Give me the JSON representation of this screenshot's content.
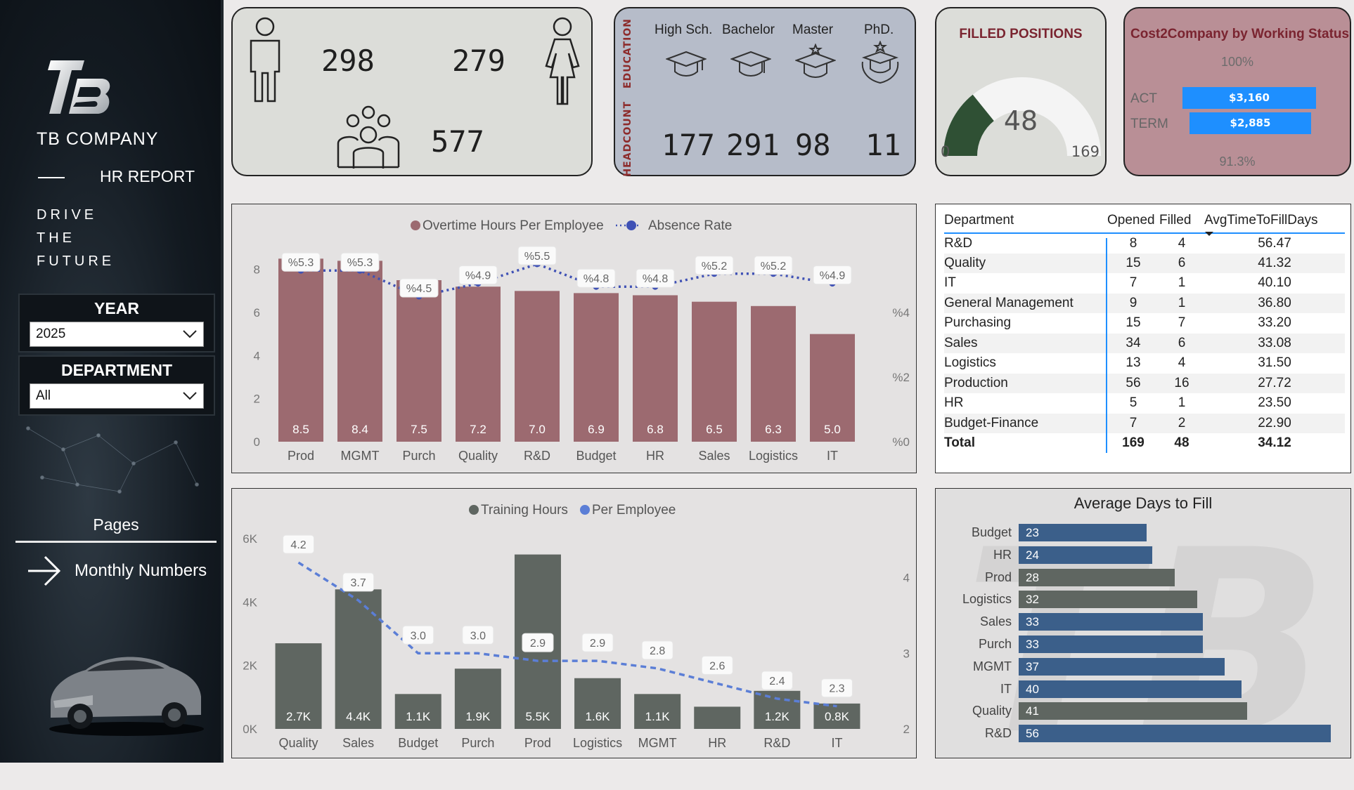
{
  "sidebar": {
    "logo_text": "TB",
    "company": "TB COMPANY",
    "report": "HR REPORT",
    "tagline": [
      "DRIVE",
      "THE",
      "FUTURE"
    ],
    "year_label": "YEAR",
    "year_value": "2025",
    "department_label": "DEPARTMENT",
    "department_value": "All",
    "pages_label": "Pages",
    "page_link": "Monthly Numbers"
  },
  "gender_card": {
    "male": "298",
    "female": "279",
    "total": "577",
    "icons": [
      "male-icon",
      "female-icon",
      "group-icon"
    ]
  },
  "education_card": {
    "side_education": "EDUCATION",
    "side_headcount": "HEADCOUNT",
    "levels": [
      {
        "label": "High Sch.",
        "count": "177"
      },
      {
        "label": "Bachelor",
        "count": "291"
      },
      {
        "label": "Master",
        "count": "98"
      },
      {
        "label": "PhD.",
        "count": "11"
      }
    ]
  },
  "filled_positions": {
    "title": "FILLED POSITIONS",
    "value": "48",
    "min": "0",
    "max": "169",
    "fraction": 0.284,
    "colors": {
      "fill": "#2f5034",
      "track": "#f4f4f4"
    }
  },
  "cost_card": {
    "title": "Cost2Company by Working Status",
    "top_pct": "100%",
    "bottom_pct": "91.3%",
    "rows": [
      {
        "label": "ACT",
        "value": "$3,160",
        "fraction": 1.0
      },
      {
        "label": "TERM",
        "value": "$2,885",
        "fraction": 0.913
      }
    ]
  },
  "chart_data": [
    {
      "type": "bar",
      "legend": [
        "Overtime Hours Per Employee",
        "Absence Rate"
      ],
      "categories": [
        "Prod",
        "MGMT",
        "Purch",
        "Quality",
        "R&D",
        "Budget",
        "HR",
        "Sales",
        "Logistics",
        "IT"
      ],
      "series": [
        {
          "name": "Overtime Hours Per Employee",
          "type": "bar",
          "values": [
            8.5,
            8.4,
            7.5,
            7.2,
            7.0,
            6.9,
            6.8,
            6.5,
            6.3,
            5.0
          ],
          "color": "#9c6a70"
        },
        {
          "name": "Absence Rate",
          "type": "line",
          "values": [
            5.3,
            5.3,
            4.5,
            4.9,
            5.5,
            4.8,
            4.8,
            5.2,
            5.2,
            4.9
          ],
          "labels": [
            "%5.3",
            "%5.3",
            "%4.5",
            "%4.9",
            "%5.5",
            "%4.8",
            "%4.8",
            "%5.2",
            "%5.2",
            "%4.9"
          ],
          "color": "#3f51b5"
        }
      ],
      "bar_labels": [
        "8.5",
        "8.4",
        "7.5",
        "7.2",
        "7.0",
        "6.9",
        "6.8",
        "6.5",
        "6.3",
        "5.0"
      ],
      "y_ticks": [
        "0",
        "2",
        "4",
        "6",
        "8"
      ],
      "y2_ticks": [
        "%0",
        "%2",
        "%4"
      ],
      "ylim": [
        0,
        9
      ],
      "y2lim": [
        0,
        6
      ]
    },
    {
      "type": "bar",
      "legend": [
        "Training Hours",
        "Per Employee"
      ],
      "categories": [
        "Quality",
        "Sales",
        "Budget",
        "Purch",
        "Prod",
        "Logistics",
        "MGMT",
        "HR",
        "R&D",
        "IT"
      ],
      "series": [
        {
          "name": "Training Hours",
          "type": "bar",
          "values": [
            2700,
            4400,
            1100,
            1900,
            5500,
            1600,
            1100,
            700,
            1200,
            800
          ],
          "color": "#5f6661"
        },
        {
          "name": "Per Employee",
          "type": "line",
          "values": [
            4.2,
            3.7,
            3.0,
            3.0,
            2.9,
            2.9,
            2.8,
            2.6,
            2.4,
            2.3
          ],
          "labels": [
            "4.2",
            "3.7",
            "3.0",
            "3.0",
            "2.9",
            "2.9",
            "2.8",
            "2.6",
            "2.4",
            "2.3"
          ],
          "color": "#5b7ed6"
        }
      ],
      "bar_labels": [
        "2.7K",
        "4.4K",
        "1.1K",
        "1.9K",
        "5.5K",
        "1.6K",
        "1.1K",
        "",
        "1.2K",
        "0.8K"
      ],
      "y_ticks": [
        "0K",
        "2K",
        "4K",
        "6K"
      ],
      "y2_ticks": [
        "2",
        "3",
        "4"
      ],
      "ylim": [
        0,
        6200
      ],
      "y2lim": [
        2,
        4.6
      ]
    },
    {
      "type": "bar",
      "title": "Average Days to Fill",
      "orientation": "horizontal",
      "categories": [
        "Budget",
        "HR",
        "Prod",
        "Logistics",
        "Sales",
        "Purch",
        "MGMT",
        "IT",
        "Quality",
        "R&D"
      ],
      "values": [
        23,
        24,
        28,
        32,
        33,
        33,
        37,
        40,
        41,
        56
      ],
      "colors": [
        "#3b5f8a",
        "#3b5f8a",
        "#5f6661",
        "#5f6661",
        "#3b5f8a",
        "#3b5f8a",
        "#3b5f8a",
        "#3b5f8a",
        "#5f6661",
        "#3b5f8a"
      ],
      "xlim": [
        0,
        58
      ]
    }
  ],
  "dept_table": {
    "headers": [
      "Department",
      "Opened",
      "Filled",
      "AvgTimeToFillDays"
    ],
    "rows": [
      [
        "R&D",
        "8",
        "4",
        "56.47"
      ],
      [
        "Quality",
        "15",
        "6",
        "41.32"
      ],
      [
        "IT",
        "7",
        "1",
        "40.10"
      ],
      [
        "General Management",
        "9",
        "1",
        "36.80"
      ],
      [
        "Purchasing",
        "15",
        "7",
        "33.20"
      ],
      [
        "Sales",
        "34",
        "6",
        "33.08"
      ],
      [
        "Logistics",
        "13",
        "4",
        "31.50"
      ],
      [
        "Production",
        "56",
        "16",
        "27.72"
      ],
      [
        "HR",
        "5",
        "1",
        "23.50"
      ],
      [
        "Budget-Finance",
        "7",
        "2",
        "22.90"
      ]
    ],
    "total": [
      "Total",
      "169",
      "48",
      "34.12"
    ]
  }
}
